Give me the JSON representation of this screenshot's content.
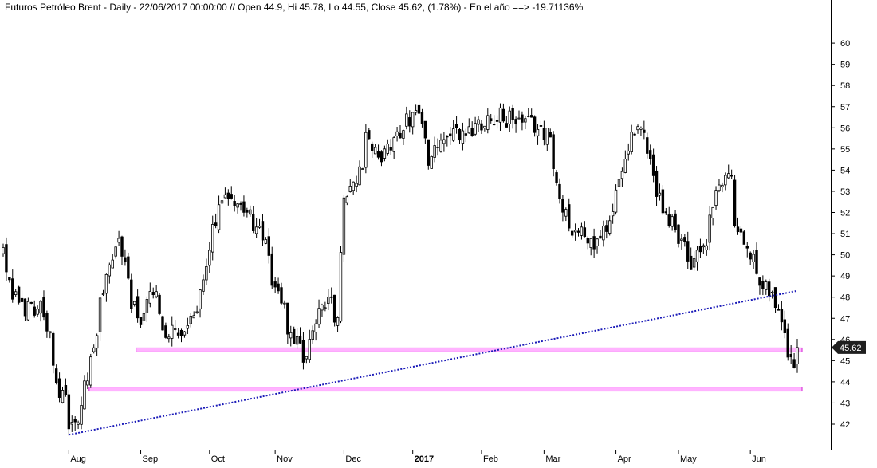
{
  "header": {
    "title": "Futuros Petróleo Brent - Daily - 22/06/2017 00:00:00 // Open 44.9, Hi 45.78, Lo 44.55, Close 45.62, (1.78%) - En el año ==> -19.71136%"
  },
  "colors": {
    "background": "#ffffff",
    "candle": "#000000",
    "trendline": "#1a1ab8",
    "support_fill": "#ffb3ff",
    "support_stroke": "#d020d0",
    "price_tag": "#1f1f1f",
    "axis": "#000000"
  },
  "chart_data": {
    "type": "candlestick",
    "title": "Futuros Petróleo Brent - Daily - 22/06/2017 00:00:00 // Open 44.9, Hi 45.78, Lo 44.55, Close 45.62, (1.78%) - En el año ==> -19.71136%",
    "y_axis_side": "right",
    "ylim": [
      41,
      60.3
    ],
    "y_ticks": [
      42,
      43,
      44,
      45,
      46,
      47,
      48,
      49,
      50,
      51,
      52,
      53,
      54,
      55,
      56,
      57,
      58,
      59,
      60
    ],
    "x_tick_labels": [
      "Aug",
      "Sep",
      "Oct",
      "Nov",
      "Dec",
      "2017",
      "Feb",
      "Mar",
      "Apr",
      "May",
      "Jun"
    ],
    "x_tick_bold": [
      false,
      false,
      false,
      false,
      false,
      true,
      false,
      false,
      false,
      false,
      false
    ],
    "last_close_label": "45.62",
    "last_close": 45.62,
    "date_range": [
      "2016-07-01",
      "2017-06-22"
    ],
    "anchors": [
      [
        "2016-07-01",
        50.2
      ],
      [
        "2016-07-06",
        48.0
      ],
      [
        "2016-07-12",
        47.5
      ],
      [
        "2016-07-19",
        47.6
      ],
      [
        "2016-07-26",
        44.0
      ],
      [
        "2016-08-01",
        42.0
      ],
      [
        "2016-08-03",
        41.8
      ],
      [
        "2016-08-10",
        44.8
      ],
      [
        "2016-08-16",
        48.5
      ],
      [
        "2016-08-22",
        50.8
      ],
      [
        "2016-08-31",
        47.0
      ],
      [
        "2016-09-02",
        46.8
      ],
      [
        "2016-09-07",
        48.3
      ],
      [
        "2016-09-12",
        46.5
      ],
      [
        "2016-09-20",
        46.0
      ],
      [
        "2016-09-28",
        48.0
      ],
      [
        "2016-10-06",
        52.0
      ],
      [
        "2016-10-10",
        53.0
      ],
      [
        "2016-10-18",
        52.0
      ],
      [
        "2016-10-25",
        51.0
      ],
      [
        "2016-11-01",
        48.5
      ],
      [
        "2016-11-07",
        46.5
      ],
      [
        "2016-11-14",
        44.6
      ],
      [
        "2016-11-18",
        47.0
      ],
      [
        "2016-11-25",
        48.2
      ],
      [
        "2016-11-29",
        46.6
      ],
      [
        "2016-11-30",
        50.5
      ],
      [
        "2016-12-01",
        53.0
      ],
      [
        "2016-12-07",
        53.5
      ],
      [
        "2016-12-12",
        55.5
      ],
      [
        "2016-12-16",
        54.5
      ],
      [
        "2016-12-22",
        55.0
      ],
      [
        "2016-12-30",
        56.5
      ],
      [
        "2017-01-03",
        57.0
      ],
      [
        "2017-01-09",
        54.5
      ],
      [
        "2017-01-16",
        55.5
      ],
      [
        "2017-01-25",
        55.8
      ],
      [
        "2017-02-03",
        56.5
      ],
      [
        "2017-02-10",
        56.5
      ],
      [
        "2017-02-20",
        56.2
      ],
      [
        "2017-02-28",
        56.0
      ],
      [
        "2017-03-03",
        55.5
      ],
      [
        "2017-03-09",
        52.2
      ],
      [
        "2017-03-14",
        51.3
      ],
      [
        "2017-03-22",
        50.5
      ],
      [
        "2017-03-27",
        50.8
      ],
      [
        "2017-04-03",
        53.0
      ],
      [
        "2017-04-11",
        56.0
      ],
      [
        "2017-04-17",
        55.0
      ],
      [
        "2017-04-20",
        53.0
      ],
      [
        "2017-04-27",
        51.5
      ],
      [
        "2017-05-03",
        50.5
      ],
      [
        "2017-05-05",
        49.0
      ],
      [
        "2017-05-12",
        50.5
      ],
      [
        "2017-05-19",
        53.5
      ],
      [
        "2017-05-24",
        54.0
      ],
      [
        "2017-05-25",
        51.5
      ],
      [
        "2017-06-01",
        50.0
      ],
      [
        "2017-06-06",
        49.0
      ],
      [
        "2017-06-13",
        47.8
      ],
      [
        "2017-06-15",
        47.0
      ],
      [
        "2017-06-21",
        44.8
      ],
      [
        "2017-06-22",
        45.62
      ]
    ],
    "trendline": {
      "from": [
        "2016-08-01",
        41.5
      ],
      "to": [
        "2017-06-22",
        48.3
      ]
    },
    "support_zones": [
      {
        "from": "2016-08-31",
        "to": "2017-06-22",
        "low": 45.45,
        "high": 45.6
      },
      {
        "from": "2016-08-10",
        "to": "2017-06-22",
        "low": 43.6,
        "high": 43.75
      }
    ]
  }
}
